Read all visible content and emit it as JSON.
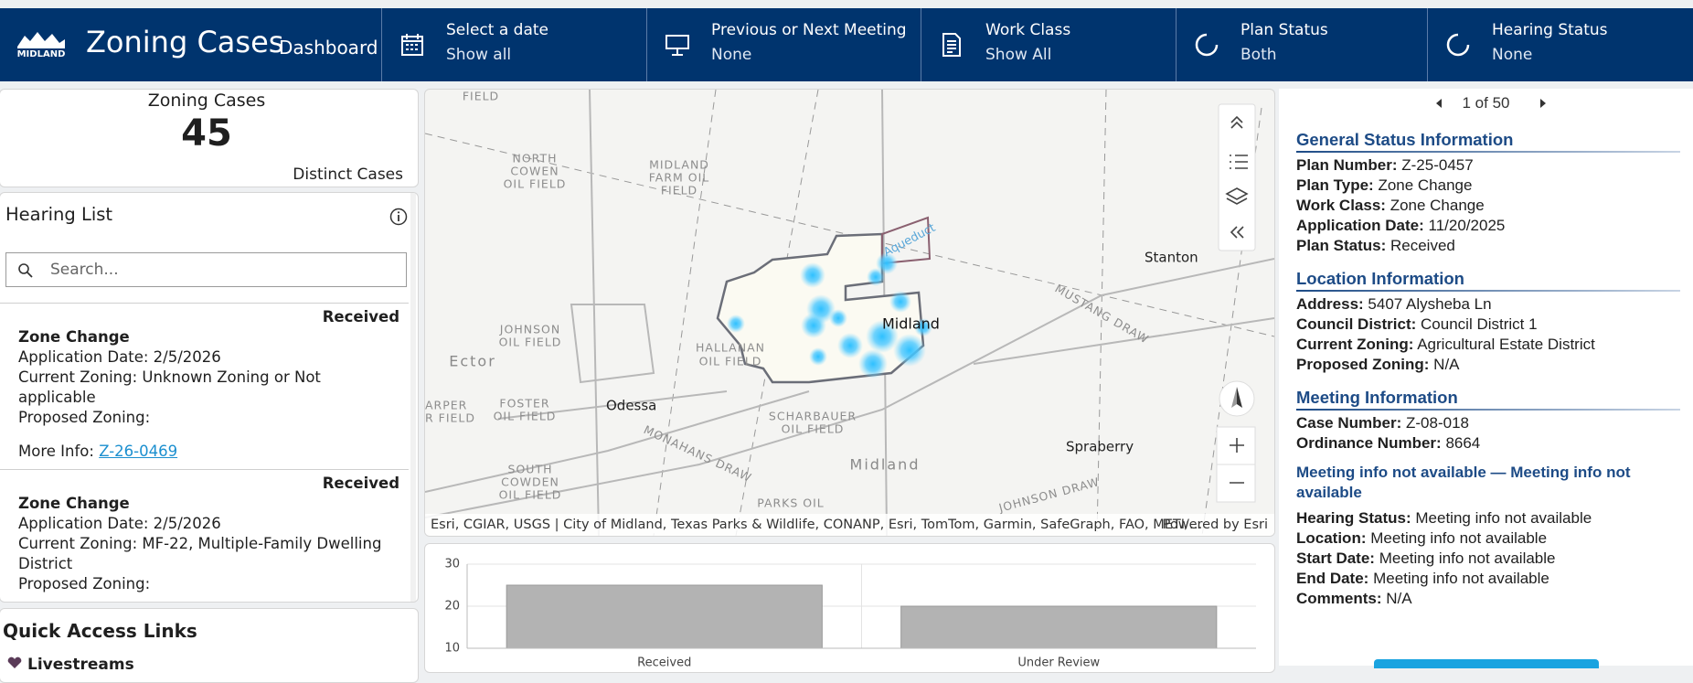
{
  "header": {
    "logo": "MIDLAND",
    "title": "Zoning Cases",
    "subtitle": "Dashboard",
    "items": [
      {
        "label": "Select a date",
        "value": "Show all"
      },
      {
        "label": "Previous or Next Meeting",
        "value": "None"
      },
      {
        "label": "Work Class",
        "value": "Show All"
      },
      {
        "label": "Plan Status",
        "value": "Both"
      },
      {
        "label": "Hearing Status",
        "value": "None"
      }
    ]
  },
  "indicator": {
    "title": "Zoning Cases",
    "value": 45,
    "caption": "Distinct Cases"
  },
  "hearing_list": {
    "title": "Hearing List",
    "search_placeholder": "Search...",
    "items": [
      {
        "status": "Received",
        "title": "Zone Change",
        "lines": [
          "Application Date: 2/5/2026",
          "Current Zoning:  Unknown Zoning or Not applicable",
          "Proposed Zoning:"
        ],
        "more_info": "More Info:",
        "link": "Z-26-0469"
      },
      {
        "status": "Received",
        "title": "Zone Change",
        "lines": [
          "Application Date: 2/5/2026",
          "Current Zoning:  MF-22, Multiple-Family Dwelling District",
          "Proposed Zoning:"
        ]
      }
    ]
  },
  "quick_links": {
    "title": "Quick Access Links",
    "items": [
      "Livestreams"
    ]
  },
  "map": {
    "labels": [
      "FIELD",
      "NORTH",
      "COWEN",
      "OIL FIELD",
      "MIDLAND",
      "FARM OIL",
      "FIELD",
      "Aqueduct",
      "Stanton",
      "MUSTANG DRAW",
      "Midland",
      "JOHNSON",
      "OIL FIELD",
      "HALLANAN",
      "OIL FIELD",
      "Ector",
      "Odessa",
      "FOSTER",
      "OIL FIELD",
      "ARPER",
      "R FIELD",
      "SCHARBAUER",
      "OIL FIELD",
      "Spraberry",
      "Midland",
      "SOUTH",
      "COWDEN",
      "OIL FIELD",
      "MONAHANS DRAW",
      "PARKS OIL",
      "JOHNSON DRAW"
    ],
    "attribution": "Esri, CGIAR, USGS | City of Midland, Texas Parks & Wildlife, CONANP, Esri, TomTom, Garmin, SafeGraph, FAO, METI/…",
    "powered_by": "Powered by Esri"
  },
  "chart_data": {
    "type": "bar",
    "categories": [
      "Received",
      "Under Review"
    ],
    "values": [
      25,
      20
    ],
    "color": "#b3b3b3",
    "ylim": [
      10,
      30
    ],
    "yticks": [
      10,
      20,
      30
    ],
    "grid": true
  },
  "details": {
    "pager": "1 of 50",
    "sections": [
      {
        "title": "General Status Information",
        "fields": [
          {
            "label": "Plan Number:",
            "value": "Z-25-0457"
          },
          {
            "label": "Plan Type:",
            "value": "Zone Change"
          },
          {
            "label": "Work Class:",
            "value": "Zone Change"
          },
          {
            "label": "Application Date:",
            "value": "11/20/2025"
          },
          {
            "label": "Plan Status:",
            "value": "Received"
          }
        ]
      },
      {
        "title": "Location Information",
        "fields": [
          {
            "label": "Address:",
            "value": "5407 Alysheba Ln"
          },
          {
            "label": "Council District:",
            "value": "Council District 1"
          },
          {
            "label": "Current Zoning:",
            "value": "Agricultural Estate District"
          },
          {
            "label": "Proposed Zoning:",
            "value": "N/A"
          }
        ]
      },
      {
        "title": "Meeting Information",
        "fields": [
          {
            "label": "Case Number:",
            "value": "Z-08-018"
          },
          {
            "label": "Ordinance Number:",
            "value": "8664"
          }
        ],
        "note": "Meeting info not available — Meeting info not available",
        "note_fields": [
          {
            "label": "Hearing Status:",
            "value": "Meeting info not available"
          },
          {
            "label": "Location:",
            "value": "Meeting info not available"
          },
          {
            "label": "Start Date:",
            "value": "Meeting info not available"
          },
          {
            "label": "End Date:",
            "value": "Meeting info not available"
          },
          {
            "label": "Comments:",
            "value": "N/A"
          }
        ]
      }
    ]
  }
}
